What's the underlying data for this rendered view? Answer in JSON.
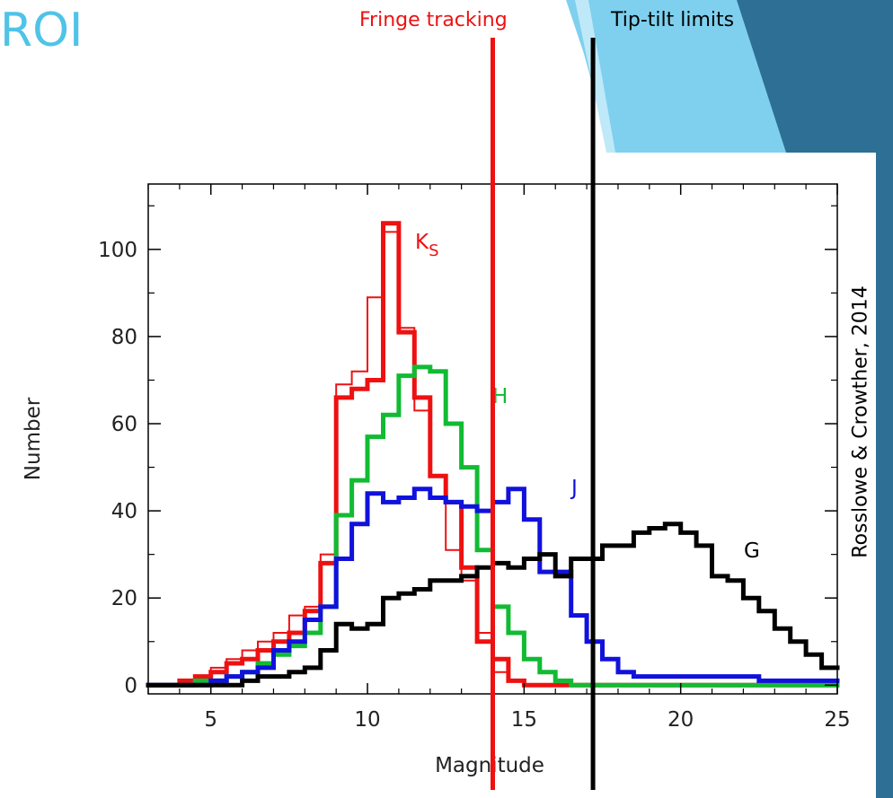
{
  "slide": {
    "title": "ROI",
    "colors": {
      "title": "#4fc3e8",
      "ribbon_dark": "#2e6f96",
      "ribbon_light": "#7fd0ee"
    }
  },
  "annotations": {
    "fringe_label": "Fringe tracking",
    "fringe_color": "#ee1111",
    "tiptilt_label": "Tip-tilt limits",
    "tiptilt_color": "#000000",
    "credit": "Rosslowe & Crowther, 2014"
  },
  "chart_data": {
    "type": "histogram-step",
    "xlabel": "Magnitude",
    "ylabel": "Number",
    "xlim": [
      3,
      25
    ],
    "ylim": [
      -2,
      115
    ],
    "xticks": [
      "5",
      "10",
      "15",
      "20",
      "25"
    ],
    "yticks": [
      "0",
      "20",
      "40",
      "60",
      "80",
      "100"
    ],
    "bin_width": 0.5,
    "bins_start": [
      3,
      3.5,
      4,
      4.5,
      5,
      5.5,
      6,
      6.5,
      7,
      7.5,
      8,
      8.5,
      9,
      9.5,
      10,
      10.5,
      11,
      11.5,
      12,
      12.5,
      13,
      13.5,
      14,
      14.5,
      15,
      15.5,
      16,
      16.5,
      17,
      17.5,
      18,
      18.5,
      19,
      19.5,
      20,
      20.5,
      21,
      21.5,
      22,
      22.5,
      23,
      23.5,
      24,
      24.5
    ],
    "series": [
      {
        "name": "Ks",
        "color": "#ee1111",
        "style": "thick",
        "values": [
          0,
          0,
          1,
          2,
          3,
          5,
          6,
          8,
          10,
          12,
          17,
          28,
          66,
          68,
          70,
          106,
          81,
          66,
          48,
          42,
          27,
          10,
          6,
          1,
          0,
          0,
          0,
          0,
          0,
          0,
          0,
          0,
          0,
          0,
          0,
          0,
          0,
          0,
          0,
          0,
          0,
          0,
          0,
          0
        ]
      },
      {
        "name": "Ks",
        "color": "#ee1111",
        "style": "thin",
        "values": [
          0,
          0,
          1,
          2,
          4,
          6,
          8,
          10,
          12,
          16,
          18,
          30,
          69,
          72,
          89,
          104,
          82,
          63,
          48,
          31,
          24,
          12,
          3,
          1,
          0,
          0,
          0,
          0,
          0,
          0,
          0,
          0,
          0,
          0,
          0,
          0,
          0,
          0,
          0,
          0,
          0,
          0,
          0,
          0
        ]
      },
      {
        "name": "H",
        "color": "#11bb33",
        "style": "thick",
        "values": [
          0,
          0,
          0,
          1,
          1,
          2,
          3,
          5,
          7,
          9,
          12,
          18,
          39,
          47,
          57,
          62,
          71,
          73,
          72,
          60,
          50,
          31,
          18,
          12,
          6,
          3,
          1,
          0,
          0,
          0,
          0,
          0,
          0,
          0,
          0,
          0,
          0,
          0,
          0,
          0,
          0,
          0,
          0,
          0
        ]
      },
      {
        "name": "J",
        "color": "#1111dd",
        "style": "thick",
        "values": [
          0,
          0,
          0,
          0,
          1,
          2,
          3,
          4,
          8,
          10,
          15,
          18,
          29,
          37,
          44,
          42,
          43,
          45,
          43,
          42,
          41,
          40,
          42,
          45,
          38,
          26,
          26,
          16,
          10,
          6,
          3,
          2,
          2,
          2,
          2,
          2,
          2,
          2,
          2,
          1,
          1,
          1,
          1,
          1
        ]
      },
      {
        "name": "G",
        "color": "#000000",
        "style": "thick",
        "values": [
          0,
          0,
          0,
          0,
          0,
          0,
          1,
          2,
          2,
          3,
          4,
          8,
          14,
          13,
          14,
          20,
          21,
          22,
          24,
          24,
          25,
          27,
          28,
          27,
          29,
          30,
          25,
          29,
          29,
          32,
          32,
          35,
          36,
          37,
          35,
          32,
          25,
          24,
          20,
          17,
          13,
          10,
          7,
          4
        ]
      }
    ],
    "series_labels": [
      "Ks",
      "H",
      "J",
      "G"
    ],
    "limits": [
      {
        "label": "Fringe tracking",
        "x": 14.0,
        "color": "#ee1111"
      },
      {
        "label": "Tip-tilt limits",
        "x": 17.2,
        "color": "#000000"
      }
    ]
  }
}
